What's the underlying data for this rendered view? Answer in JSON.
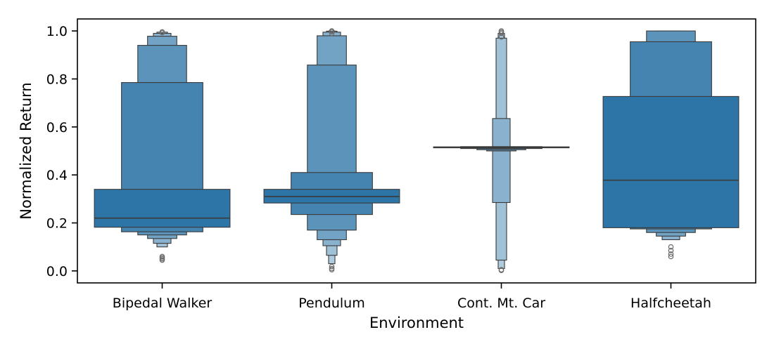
{
  "chart_data": {
    "type": "boxen",
    "xlabel": "Environment",
    "ylabel": "Normalized Return",
    "ylim": [
      -0.05,
      1.05
    ],
    "yticks": [
      0.0,
      0.2,
      0.4,
      0.6,
      0.8,
      1.0
    ],
    "ytick_labels": [
      "0.0",
      "0.2",
      "0.4",
      "0.6",
      "0.8",
      "1.0"
    ],
    "categories": [
      "Bipedal Walker",
      "Pendulum",
      "Cont. Mt. Car",
      "Halfcheetah"
    ],
    "grid": false,
    "legend": "none",
    "colors": {
      "base": "#2e75a7",
      "edge": "#3a3a3a",
      "outlier_edge": "#6b6b6b",
      "axis": "#000000"
    },
    "distributions": [
      {
        "name": "Bipedal Walker",
        "median": 0.22,
        "levels": [
          {
            "lo": 0.182,
            "hi": 0.34
          },
          {
            "lo": 0.163,
            "hi": 0.785
          },
          {
            "lo": 0.15,
            "hi": 0.94
          },
          {
            "lo": 0.135,
            "hi": 0.978
          },
          {
            "lo": 0.115,
            "hi": 0.99
          },
          {
            "lo": 0.1,
            "hi": 0.995
          }
        ],
        "outliers": [
          0.045,
          0.05,
          0.055,
          0.06,
          0.993,
          0.996
        ]
      },
      {
        "name": "Pendulum",
        "median": 0.31,
        "levels": [
          {
            "lo": 0.283,
            "hi": 0.34
          },
          {
            "lo": 0.235,
            "hi": 0.41
          },
          {
            "lo": 0.17,
            "hi": 0.858
          },
          {
            "lo": 0.13,
            "hi": 0.98
          },
          {
            "lo": 0.105,
            "hi": 0.995
          },
          {
            "lo": 0.065,
            "hi": 0.999
          },
          {
            "lo": 0.03,
            "hi": 1.0
          }
        ],
        "outliers": [
          0.005,
          0.01,
          0.018,
          0.99,
          0.997,
          1.0
        ]
      },
      {
        "name": "Cont. Mt. Car",
        "median": 0.515,
        "levels": [
          {
            "lo": 0.513,
            "hi": 0.517
          },
          {
            "lo": 0.51,
            "hi": 0.518
          },
          {
            "lo": 0.505,
            "hi": 0.515
          },
          {
            "lo": 0.5,
            "hi": 0.512
          },
          {
            "lo": 0.285,
            "hi": 0.635
          },
          {
            "lo": 0.045,
            "hi": 0.97
          },
          {
            "lo": 0.01,
            "hi": 0.99
          }
        ],
        "outliers": [
          0.002,
          0.005,
          0.975,
          0.99,
          0.995,
          1.0
        ]
      },
      {
        "name": "Halfcheetah",
        "median": 0.378,
        "levels": [
          {
            "lo": 0.18,
            "hi": 0.727
          },
          {
            "lo": 0.175,
            "hi": 0.955
          },
          {
            "lo": 0.16,
            "hi": 1.0
          },
          {
            "lo": 0.145,
            "hi": 1.0
          },
          {
            "lo": 0.13,
            "hi": 1.0
          }
        ],
        "outliers": [
          0.06,
          0.07,
          0.085,
          0.1
        ]
      }
    ]
  }
}
